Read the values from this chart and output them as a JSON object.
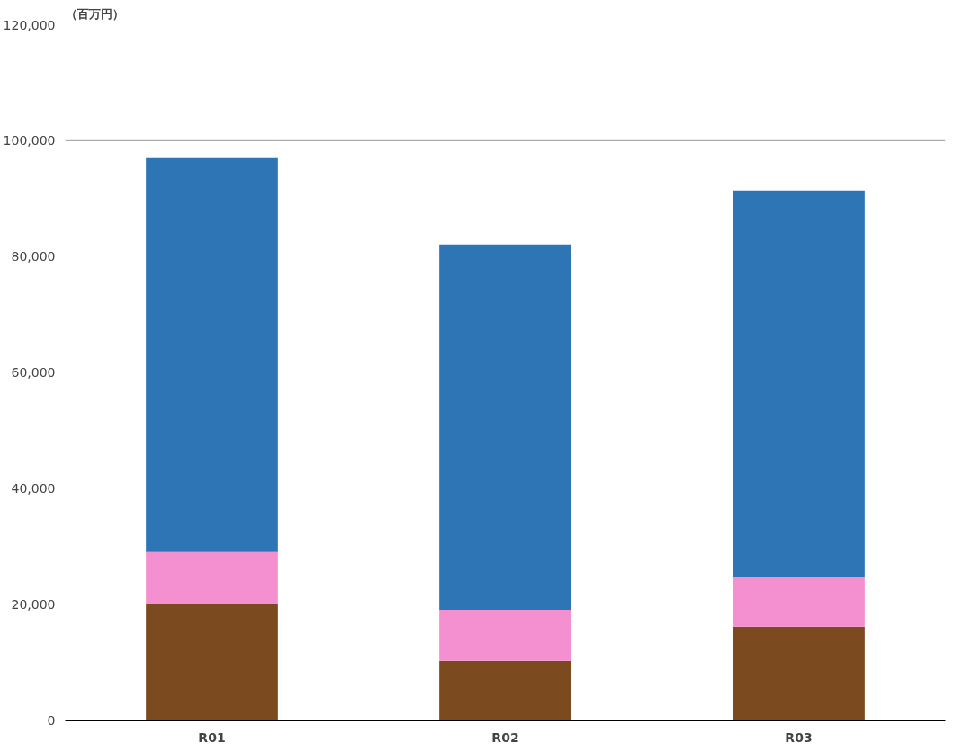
{
  "chart_data": {
    "type": "bar",
    "stacked": true,
    "ylabel": "（百万円）",
    "categories": [
      "R01",
      "R02",
      "R03"
    ],
    "series": [
      {
        "color": "#7b4a1e",
        "values": [
          20000,
          10200,
          16100
        ]
      },
      {
        "color": "#f48fd0",
        "values": [
          9000,
          8800,
          8600
        ]
      },
      {
        "color": "#2e75b6",
        "values": [
          68000,
          63100,
          66700
        ]
      }
    ],
    "ylim": [
      0,
      120000
    ],
    "yticks": [
      {
        "value": 0,
        "label": "0"
      },
      {
        "value": 20000,
        "label": "20,000"
      },
      {
        "value": 40000,
        "label": "40,000"
      },
      {
        "value": 60000,
        "label": "60,000"
      },
      {
        "value": 80000,
        "label": "80,000"
      },
      {
        "value": 100000,
        "label": "100,000"
      },
      {
        "value": 120000,
        "label": "120,000"
      }
    ],
    "ref_lines": [
      {
        "axis": "y",
        "value": 100000,
        "color": "#999999"
      }
    ],
    "grid": false
  }
}
